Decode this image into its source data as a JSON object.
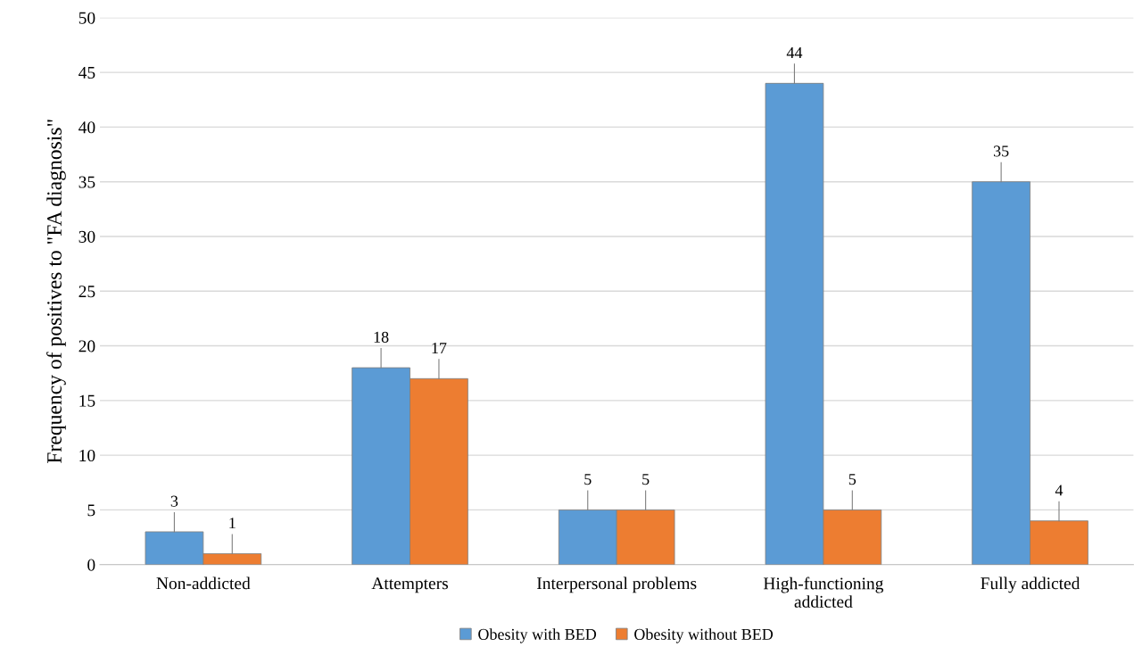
{
  "chart_data": {
    "type": "bar",
    "ylabel": "Frequency of positives to \"FA diagnosis\"",
    "categories": [
      "Non-addicted",
      "Attempters",
      "Interpersonal problems",
      "High-functioning\naddicted",
      "Fully addicted"
    ],
    "series": [
      {
        "name": "Obesity with BED",
        "color": "#5b9bd5",
        "values": [
          3,
          18,
          5,
          44,
          35
        ]
      },
      {
        "name": "Obesity without BED",
        "color": "#ed7d31",
        "values": [
          1,
          17,
          5,
          5,
          4
        ]
      }
    ],
    "ylim": [
      0,
      50
    ],
    "yticks": [
      0,
      5,
      10,
      15,
      20,
      25,
      30,
      35,
      40,
      45,
      50
    ],
    "grid": "y",
    "legend": "bottom",
    "data_labels": true
  }
}
